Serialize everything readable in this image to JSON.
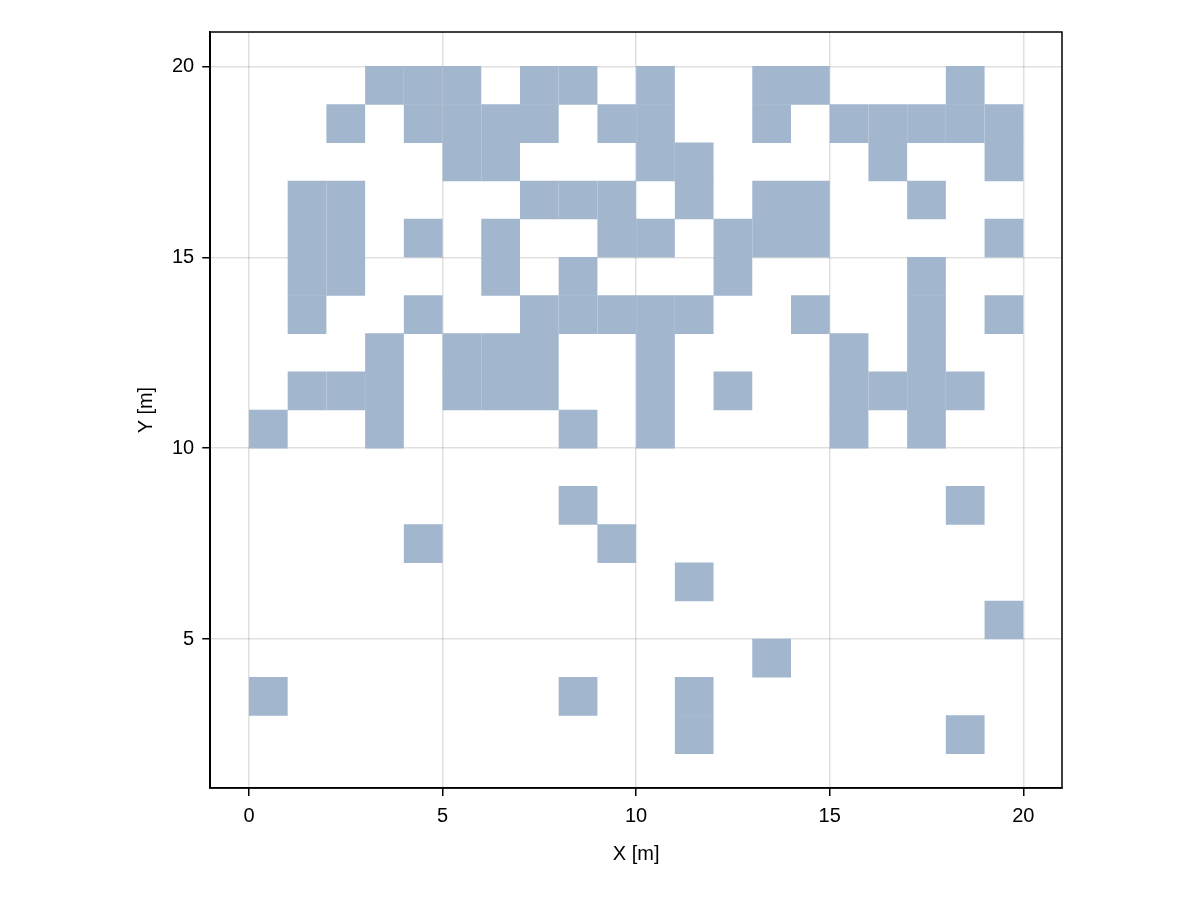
{
  "chart_data": {
    "type": "scatter",
    "xlabel": "X [m]",
    "ylabel": "Y [m]",
    "xlim": [
      -1,
      21
    ],
    "ylim": [
      1.1,
      20.9
    ],
    "xticks": [
      0,
      5,
      10,
      15,
      20
    ],
    "yticks": [
      5,
      10,
      15,
      20
    ],
    "grid": true,
    "marker": "square",
    "legend": false,
    "series": [
      {
        "color": "#a2b7ce",
        "x": [
          3.5,
          4.5,
          5.5,
          7.5,
          8.5,
          10.5,
          13.5,
          14.5,
          18.5,
          2.5,
          4.5,
          5.5,
          6.5,
          7.5,
          9.5,
          10.5,
          13.5,
          15.5,
          16.5,
          17.5,
          18.5,
          19.5,
          5.5,
          6.5,
          10.5,
          11.5,
          16.5,
          19.5,
          1.5,
          2.5,
          7.5,
          8.5,
          9.5,
          11.5,
          13.5,
          14.5,
          17.5,
          1.5,
          2.5,
          4.5,
          6.5,
          9.5,
          10.5,
          12.5,
          13.5,
          14.5,
          19.5,
          1.5,
          2.5,
          6.5,
          8.5,
          12.5,
          17.5,
          1.5,
          4.5,
          7.5,
          8.5,
          9.5,
          10.5,
          11.5,
          14.5,
          17.5,
          19.5,
          3.5,
          5.5,
          6.5,
          7.5,
          10.5,
          15.5,
          17.5,
          1.5,
          2.5,
          3.5,
          5.5,
          6.5,
          7.5,
          10.5,
          12.5,
          15.5,
          16.5,
          17.5,
          18.5,
          0.5,
          3.5,
          8.5,
          10.5,
          15.5,
          17.5,
          8.5,
          18.5,
          4.5,
          9.5,
          11.5,
          19.5,
          13.5,
          0.5,
          8.5,
          11.5,
          11.5,
          18.5
        ],
        "values": [
          19.5,
          19.5,
          19.5,
          19.5,
          19.5,
          19.5,
          19.5,
          19.5,
          19.5,
          18.5,
          18.5,
          18.5,
          18.5,
          18.5,
          18.5,
          18.5,
          18.5,
          18.5,
          18.5,
          18.5,
          18.5,
          18.5,
          17.5,
          17.5,
          17.5,
          17.5,
          17.5,
          17.5,
          16.5,
          16.5,
          16.5,
          16.5,
          16.5,
          16.5,
          16.5,
          16.5,
          16.5,
          15.5,
          15.5,
          15.5,
          15.5,
          15.5,
          15.5,
          15.5,
          15.5,
          15.5,
          15.5,
          14.5,
          14.5,
          14.5,
          14.5,
          14.5,
          14.5,
          13.5,
          13.5,
          13.5,
          13.5,
          13.5,
          13.5,
          13.5,
          13.5,
          13.5,
          13.5,
          12.5,
          12.5,
          12.5,
          12.5,
          12.5,
          12.5,
          12.5,
          11.5,
          11.5,
          11.5,
          11.5,
          11.5,
          11.5,
          11.5,
          11.5,
          11.5,
          11.5,
          11.5,
          11.5,
          10.5,
          10.5,
          10.5,
          10.5,
          10.5,
          10.5,
          8.5,
          8.5,
          7.5,
          7.5,
          6.5,
          5.5,
          4.5,
          3.5,
          3.5,
          3.5,
          2.5,
          2.5
        ]
      }
    ]
  }
}
